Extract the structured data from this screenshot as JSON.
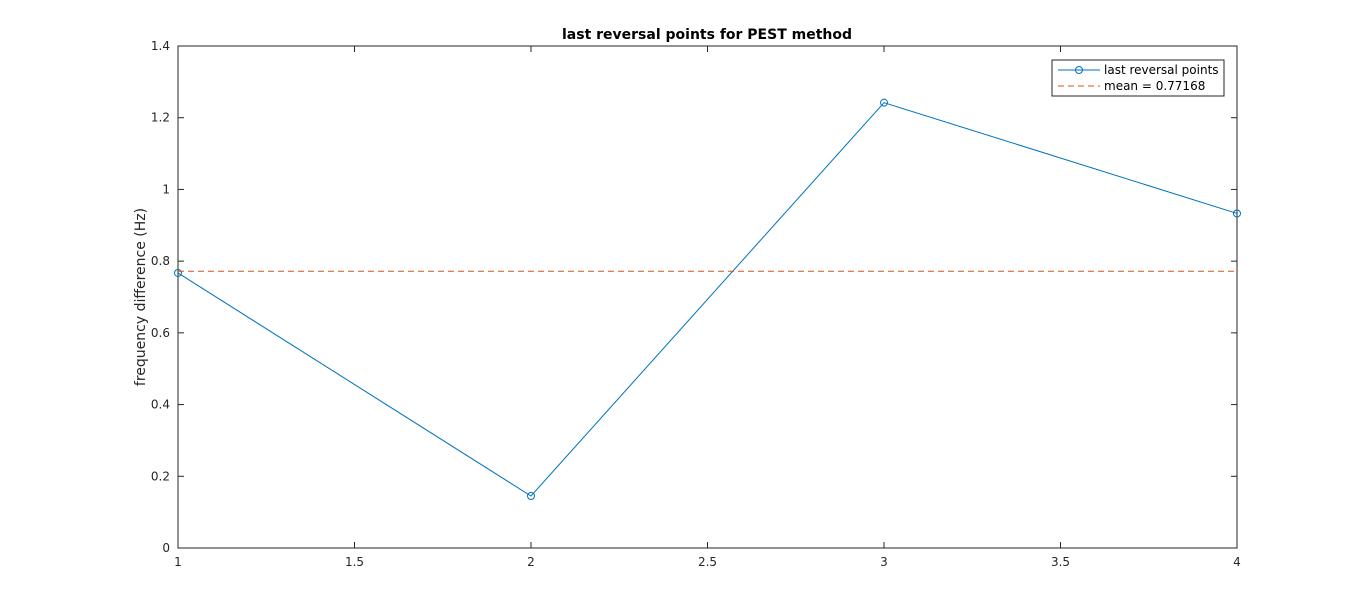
{
  "chart_data": {
    "type": "line",
    "title": "last reversal points for PEST method",
    "xlabel": "",
    "ylabel": "frequency difference (Hz)",
    "xlim": [
      1,
      4
    ],
    "ylim": [
      0,
      1.4
    ],
    "x_ticks": [
      "1",
      "1.5",
      "2",
      "2.5",
      "3",
      "3.5",
      "4"
    ],
    "y_ticks": [
      "0",
      "0.2",
      "0.4",
      "0.6",
      "0.8",
      "1",
      "1.2",
      "1.4"
    ],
    "grid": false,
    "legend_position": "top-right",
    "series": [
      {
        "name": "last reversal points",
        "style": "line-circle-markers",
        "color": "#0072BD",
        "x": [
          1,
          2,
          3,
          4
        ],
        "y": [
          0.767,
          0.145,
          1.242,
          0.933
        ]
      },
      {
        "name": "mean = 0.77168",
        "style": "dashed",
        "color": "#D95319",
        "x": [
          1,
          4
        ],
        "y": [
          0.77168,
          0.77168
        ]
      }
    ]
  }
}
